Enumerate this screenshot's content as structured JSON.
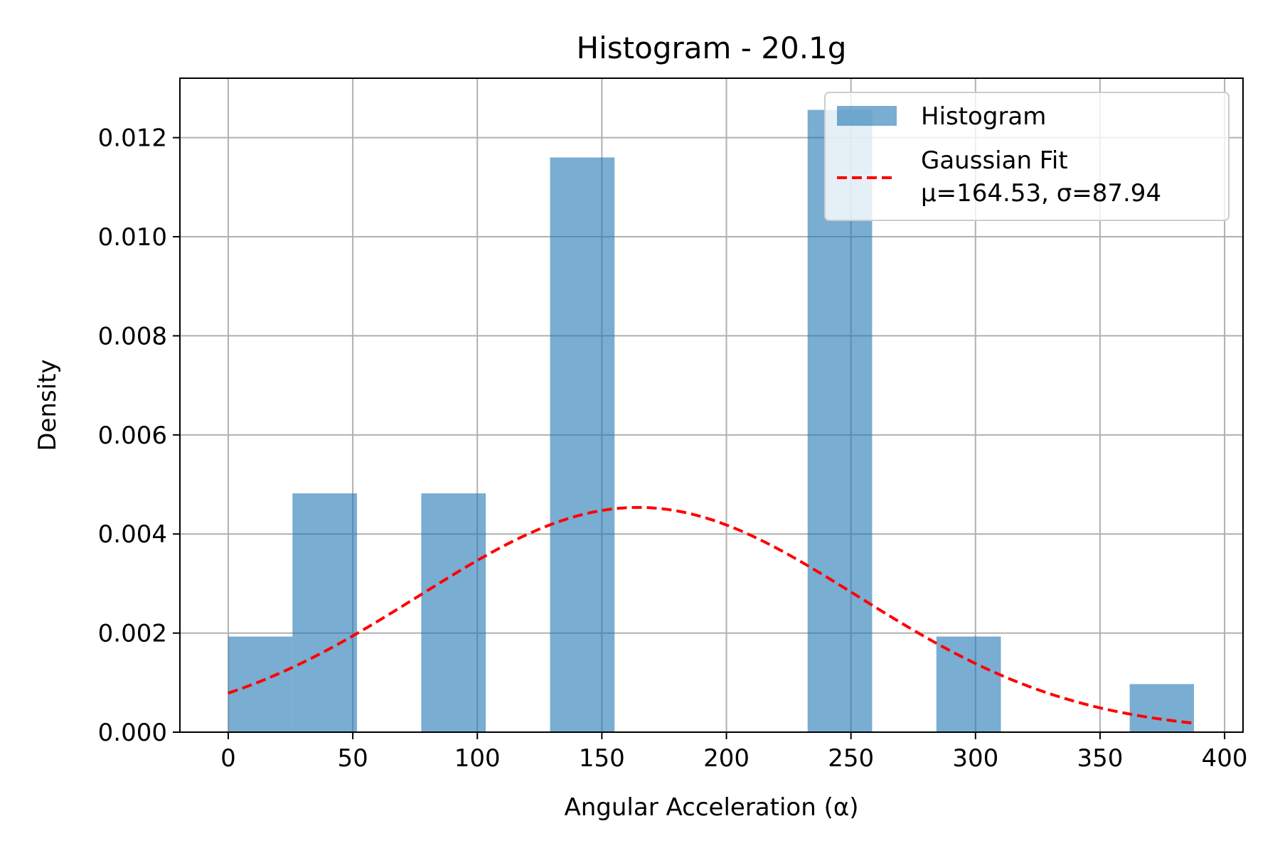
{
  "chart_data": {
    "type": "bar",
    "title": "Histogram - 20.1g",
    "xlabel": "Angular Acceleration (α)",
    "ylabel": "Density",
    "xlim": [
      -19.4,
      407.4
    ],
    "ylim": [
      0,
      0.0132
    ],
    "xticks": [
      0,
      50,
      100,
      150,
      200,
      250,
      300,
      350,
      400
    ],
    "yticks": [
      0.0,
      0.002,
      0.004,
      0.006,
      0.008,
      0.01,
      0.012
    ],
    "ytick_labels": [
      "0.000",
      "0.002",
      "0.004",
      "0.006",
      "0.008",
      "0.010",
      "0.012"
    ],
    "grid": true,
    "legend_position": "top-right",
    "series": [
      {
        "name": "Histogram",
        "kind": "histogram",
        "color": "#1f77b4",
        "alpha": 0.6,
        "bins": [
          {
            "x0": 0.0,
            "x1": 25.8,
            "density": 0.00193
          },
          {
            "x0": 25.8,
            "x1": 51.7,
            "density": 0.00482
          },
          {
            "x0": 51.7,
            "x1": 77.5,
            "density": 0.0
          },
          {
            "x0": 77.5,
            "x1": 103.4,
            "density": 0.00482
          },
          {
            "x0": 103.4,
            "x1": 129.2,
            "density": 0.0
          },
          {
            "x0": 129.2,
            "x1": 155.1,
            "density": 0.0116
          },
          {
            "x0": 155.1,
            "x1": 180.9,
            "density": 0.0
          },
          {
            "x0": 180.9,
            "x1": 206.8,
            "density": 0.0
          },
          {
            "x0": 206.8,
            "x1": 232.6,
            "density": 0.0
          },
          {
            "x0": 232.6,
            "x1": 258.5,
            "density": 0.01256
          },
          {
            "x0": 258.5,
            "x1": 284.3,
            "density": 0.0
          },
          {
            "x0": 284.3,
            "x1": 310.2,
            "density": 0.00193
          },
          {
            "x0": 310.2,
            "x1": 336.0,
            "density": 0.0
          },
          {
            "x0": 336.0,
            "x1": 361.9,
            "density": 0.0
          },
          {
            "x0": 361.9,
            "x1": 387.7,
            "density": 0.00097
          }
        ]
      },
      {
        "name": "Gaussian Fit",
        "name_line2": "μ=164.53, σ=87.94",
        "kind": "line",
        "style": "dashed",
        "color": "#ff0000",
        "mu": 164.53,
        "sigma": 87.94,
        "x_range": [
          0,
          387.7
        ]
      }
    ]
  }
}
